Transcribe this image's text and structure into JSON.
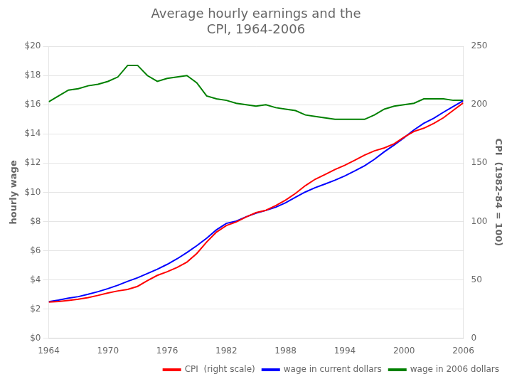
{
  "chart_data": {
    "type": "line",
    "title": [
      "Average hourly earnings and the",
      "CPI, 1964-2006"
    ],
    "ylabel": "hourly wage",
    "y2label": "CPI  (1982-84 = 100)",
    "x": [
      1964,
      1965,
      1966,
      1967,
      1968,
      1969,
      1970,
      1971,
      1972,
      1973,
      1974,
      1975,
      1976,
      1977,
      1978,
      1979,
      1980,
      1981,
      1982,
      1983,
      1984,
      1985,
      1986,
      1987,
      1988,
      1989,
      1990,
      1991,
      1992,
      1993,
      1994,
      1995,
      1996,
      1997,
      1998,
      1999,
      2000,
      2001,
      2002,
      2003,
      2004,
      2005,
      2006
    ],
    "xlim": [
      1964,
      2006
    ],
    "xticks": [
      1964,
      1970,
      1976,
      1982,
      1988,
      1994,
      2000,
      2006
    ],
    "ylim": [
      0,
      20
    ],
    "yticks": [
      {
        "value": 0,
        "label": "$0"
      },
      {
        "value": 2,
        "label": "$2"
      },
      {
        "value": 4,
        "label": "$4"
      },
      {
        "value": 6,
        "label": "$6"
      },
      {
        "value": 8,
        "label": "$8"
      },
      {
        "value": 10,
        "label": "$10"
      },
      {
        "value": 12,
        "label": "$12"
      },
      {
        "value": 14,
        "label": "$14"
      },
      {
        "value": 16,
        "label": "$16"
      },
      {
        "value": 18,
        "label": "$18"
      },
      {
        "value": 20,
        "label": "$20"
      }
    ],
    "y2lim": [
      0,
      250
    ],
    "y2ticks": [
      0,
      50,
      100,
      150,
      200,
      250
    ],
    "grid": "y",
    "legend": "lower right",
    "series": [
      {
        "name": "CPI  (right scale)",
        "color": "#ff0000",
        "axis": "y2",
        "values": [
          31.0,
          31.5,
          32.4,
          33.4,
          34.8,
          36.7,
          38.8,
          40.5,
          41.8,
          44.4,
          49.3,
          53.8,
          56.9,
          60.6,
          65.2,
          72.6,
          82.4,
          90.9,
          96.5,
          99.6,
          103.9,
          107.6,
          109.6,
          113.6,
          118.3,
          124.0,
          130.7,
          136.2,
          140.3,
          144.5,
          148.2,
          152.4,
          156.9,
          160.5,
          163.0,
          166.6,
          172.2,
          177.1,
          179.9,
          184.0,
          188.9,
          195.3,
          201.6
        ]
      },
      {
        "name": "wage in current dollars",
        "color": "#0000ff",
        "values": [
          2.5,
          2.61,
          2.75,
          2.85,
          3.01,
          3.19,
          3.4,
          3.63,
          3.9,
          4.14,
          4.43,
          4.73,
          5.06,
          5.44,
          5.87,
          6.34,
          6.85,
          7.43,
          7.87,
          8.02,
          8.32,
          8.57,
          8.76,
          8.98,
          9.28,
          9.66,
          10.02,
          10.32,
          10.57,
          10.83,
          11.12,
          11.46,
          11.82,
          12.26,
          12.78,
          13.24,
          13.74,
          14.27,
          14.73,
          15.07,
          15.49,
          15.89,
          16.27
        ]
      },
      {
        "name": "wage in 2006 dollars",
        "color": "#008000",
        "values": [
          16.2,
          16.6,
          17.0,
          17.1,
          17.3,
          17.4,
          17.6,
          17.9,
          18.7,
          18.7,
          18.0,
          17.6,
          17.8,
          17.9,
          18.0,
          17.5,
          16.6,
          16.4,
          16.3,
          16.1,
          16.0,
          15.9,
          16.0,
          15.8,
          15.7,
          15.6,
          15.3,
          15.2,
          15.1,
          15.0,
          15.0,
          15.0,
          15.0,
          15.3,
          15.7,
          15.9,
          16.0,
          16.1,
          16.4,
          16.4,
          16.4,
          16.3,
          16.3
        ]
      }
    ]
  }
}
